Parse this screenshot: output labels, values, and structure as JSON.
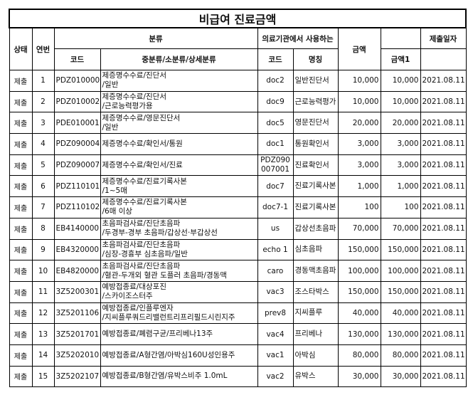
{
  "title": "비급여 진료금액",
  "headers": {
    "status": "상태",
    "seq": "연번",
    "category": "분류",
    "hospital_use": "의료기관에서 사용하는",
    "amount": "금액",
    "submit_date": "제출일자",
    "code": "코드",
    "detail": "중분류/소분류/상세분류",
    "hosp_code": "코드",
    "name": "명칭",
    "amount1": "금액1"
  },
  "rows": [
    {
      "status": "제출",
      "seq": "1",
      "code": "PDZ010000",
      "detail": "제증명수수료/진단서\n/일반",
      "hosp_code": "doc2",
      "name": "일반진단서",
      "amount": "10,000",
      "amount1": "10,000",
      "date": "2021.08.11"
    },
    {
      "status": "제출",
      "seq": "2",
      "code": "PDZ010002",
      "detail": "제증명수수료/진단서\n/근로능력평가용",
      "hosp_code": "doc9",
      "name": "근로능력평가",
      "amount": "10,000",
      "amount1": "10,000",
      "date": "2021.08.11"
    },
    {
      "status": "제출",
      "seq": "3",
      "code": "PDE010001",
      "detail": "제증명수수료/영문진단서\n/일반",
      "hosp_code": "doc5",
      "name": "영문진단서",
      "amount": "20,000",
      "amount1": "20,000",
      "date": "2021.08.11"
    },
    {
      "status": "제출",
      "seq": "4",
      "code": "PDZ090004",
      "detail": "제증명수수료/확인서/통원",
      "hosp_code": "doc1",
      "name": "통원확인서",
      "amount": "3,000",
      "amount1": "3,000",
      "date": "2021.08.11"
    },
    {
      "status": "제출",
      "seq": "5",
      "code": "PDZ090007",
      "detail": "제증명수수료/확인서/진료",
      "hosp_code": "PDZ090\n007001",
      "name": "진료확인서",
      "amount": "3,000",
      "amount1": "3,000",
      "date": "2021.08.11"
    },
    {
      "status": "제출",
      "seq": "6",
      "code": "PDZ110101",
      "detail": "제증명수수료/진료기록사본\n/1~5매",
      "hosp_code": "doc7",
      "name": "진료기록사본",
      "amount": "1,000",
      "amount1": "1,000",
      "date": "2021.08.11"
    },
    {
      "status": "제출",
      "seq": "7",
      "code": "PDZ110102",
      "detail": "제증명수수료/진료기록사본\n/6매 이상",
      "hosp_code": "doc7-1",
      "name": "진료기록사본",
      "amount": "100",
      "amount1": "100",
      "date": "2021.08.11"
    },
    {
      "status": "제출",
      "seq": "8",
      "code": "EB4140000",
      "detail": "초음파검사료/진단초음파\n/두경부-경부 초음파/갑상선·부갑상선",
      "hosp_code": "us",
      "name": "갑상선초음파",
      "amount": "70,000",
      "amount1": "70,000",
      "date": "2021.08.11"
    },
    {
      "status": "제출",
      "seq": "9",
      "code": "EB4320000",
      "detail": "초음파검사료/진단초음파\n/심장-경흉부 심초음파/일반",
      "hosp_code": "echo 1",
      "name": "심초음파",
      "amount": "150,000",
      "amount1": "150,000",
      "date": "2021.08.11"
    },
    {
      "status": "제출",
      "seq": "10",
      "code": "EB4820000",
      "detail": "초음파검사료/진단초음파\n/혈관-두개외 혈관 도플러 초음파/경동맥",
      "hosp_code": "caro",
      "name": "경동맥초음파",
      "amount": "100,000",
      "amount1": "100,000",
      "date": "2021.08.11"
    },
    {
      "status": "제출",
      "seq": "11",
      "code": "3Z5200301",
      "detail": "예방접종료/대상포진\n/스카이조스터주",
      "hosp_code": "vac3",
      "name": "조스타박스",
      "amount": "150,000",
      "amount1": "150,000",
      "date": "2021.08.11"
    },
    {
      "status": "제출",
      "seq": "12",
      "code": "3Z5201106",
      "detail": "예방접종료/인플루엔자\n/지씨플루쿼드리밸런트리프리필드시린지주",
      "hosp_code": "prev8",
      "name": "지씨플루",
      "amount": "40,000",
      "amount1": "40,000",
      "date": "2021.08.11"
    },
    {
      "status": "제출",
      "seq": "13",
      "code": "3Z5201701",
      "detail": "예방접종료/폐렴구균/프리베나13주",
      "hosp_code": "vac4",
      "name": "프리베나",
      "amount": "130,000",
      "amount1": "130,000",
      "date": "2021.08.11"
    },
    {
      "status": "제출",
      "seq": "14",
      "code": "3Z5202010",
      "detail": "예방접종료/A형간염/아박심160U성인용주",
      "hosp_code": "vac1",
      "name": "아박심",
      "amount": "80,000",
      "amount1": "80,000",
      "date": "2021.08.11"
    },
    {
      "status": "제출",
      "seq": "15",
      "code": "3Z5202107",
      "detail": "예방접종료/B형간염/유박스비주 1.0mL",
      "hosp_code": "vac2",
      "name": "유박스",
      "amount": "30,000",
      "amount1": "30,000",
      "date": "2021.08.11"
    }
  ]
}
